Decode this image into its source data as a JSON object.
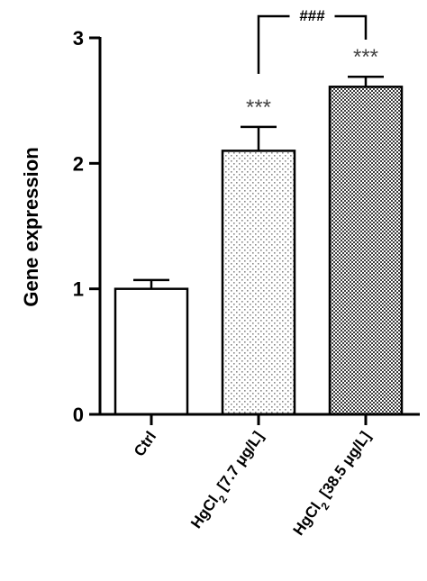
{
  "chart_data": {
    "type": "bar",
    "ylabel": "Gene expression",
    "ylim": [
      0,
      3
    ],
    "yticks": [
      "0",
      "1",
      "2",
      "3"
    ],
    "categories": [
      {
        "main": "Ctrl",
        "sub": "",
        "rest": ""
      },
      {
        "main": "HgCl",
        "sub": "2",
        "rest": " [7.7 μg/L]"
      },
      {
        "main": "HgCl",
        "sub": "2",
        "rest": " [38.5 μg/L]"
      }
    ],
    "values": [
      1.0,
      2.1,
      2.61
    ],
    "errors": [
      0.07,
      0.19,
      0.08
    ],
    "patterns": [
      "none",
      "light-dots",
      "dense-check"
    ],
    "significance": [
      "",
      "***",
      "***"
    ],
    "comparison": {
      "from": 1,
      "to": 2,
      "label": "###"
    }
  }
}
